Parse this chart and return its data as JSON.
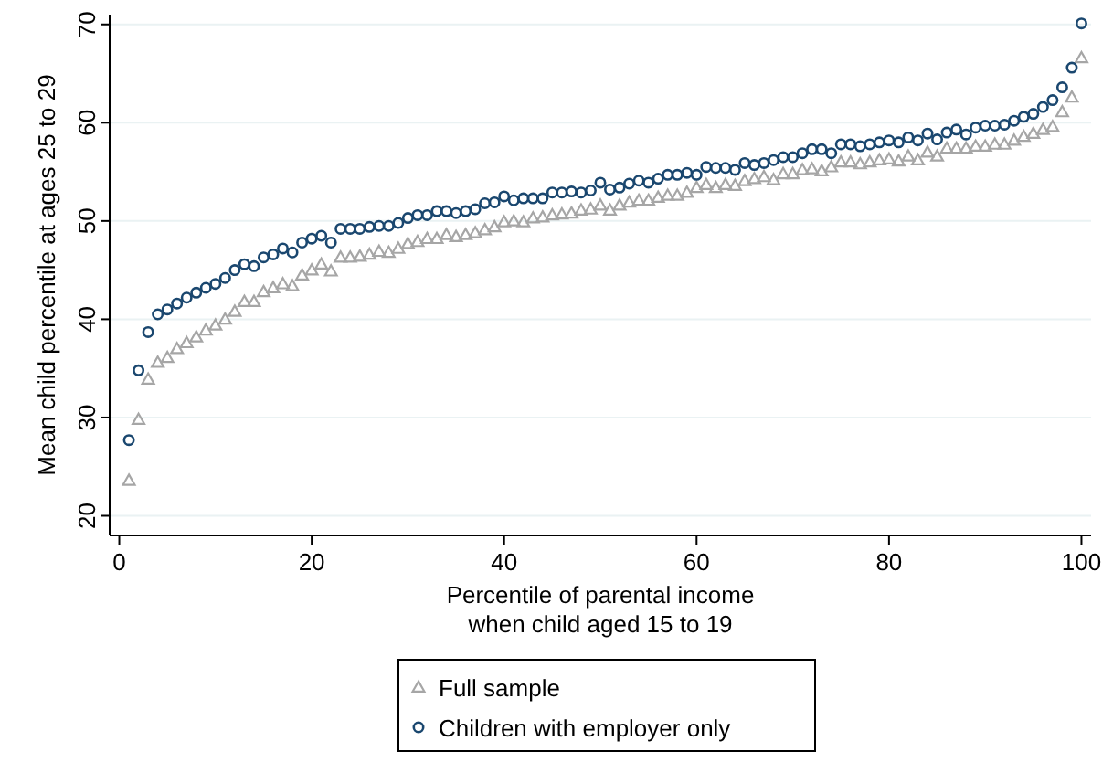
{
  "chart_data": {
    "type": "scatter",
    "xlabel": "Percentile of parental income\nwhen child aged 15 to 19",
    "ylabel": "Mean child percentile at ages 25 to 29",
    "xlim": [
      -1,
      101
    ],
    "ylim": [
      18,
      71
    ],
    "xticks": [
      0,
      20,
      40,
      60,
      80,
      100
    ],
    "yticks": [
      20,
      30,
      40,
      50,
      60,
      70
    ],
    "grid": "y",
    "legend": "bottom",
    "x": [
      1,
      2,
      3,
      4,
      5,
      6,
      7,
      8,
      9,
      10,
      11,
      12,
      13,
      14,
      15,
      16,
      17,
      18,
      19,
      20,
      21,
      22,
      23,
      24,
      25,
      26,
      27,
      28,
      29,
      30,
      31,
      32,
      33,
      34,
      35,
      36,
      37,
      38,
      39,
      40,
      41,
      42,
      43,
      44,
      45,
      46,
      47,
      48,
      49,
      50,
      51,
      52,
      53,
      54,
      55,
      56,
      57,
      58,
      59,
      60,
      61,
      62,
      63,
      64,
      65,
      66,
      67,
      68,
      69,
      70,
      71,
      72,
      73,
      74,
      75,
      76,
      77,
      78,
      79,
      80,
      81,
      82,
      83,
      84,
      85,
      86,
      87,
      88,
      89,
      90,
      91,
      92,
      93,
      94,
      95,
      96,
      97,
      98,
      99,
      100
    ],
    "series": [
      {
        "name": "Full sample",
        "color": "#a6a6a6",
        "marker": "triangle",
        "values": [
          23.6,
          29.8,
          33.9,
          35.6,
          36.1,
          37,
          37.6,
          38.2,
          38.9,
          39.4,
          40,
          40.8,
          41.8,
          41.8,
          42.8,
          43.2,
          43.6,
          43.4,
          44.5,
          45,
          45.6,
          44.9,
          46.3,
          46.3,
          46.4,
          46.6,
          46.9,
          46.8,
          47.2,
          47.7,
          47.9,
          48.2,
          48.2,
          48.6,
          48.4,
          48.6,
          48.8,
          49.1,
          49.4,
          49.9,
          50,
          49.9,
          50.3,
          50.4,
          50.6,
          50.7,
          50.8,
          51.1,
          51.2,
          51.6,
          51.1,
          51.6,
          51.9,
          52.1,
          52.1,
          52.4,
          52.6,
          52.6,
          52.9,
          53.4,
          53.7,
          53.4,
          53.7,
          53.6,
          54.1,
          54.3,
          54.5,
          54.2,
          54.8,
          54.8,
          55.2,
          55.3,
          55.1,
          55.5,
          56,
          56,
          55.8,
          56,
          56.2,
          56.3,
          56.1,
          56.6,
          56.2,
          57,
          56.6,
          57.4,
          57.4,
          57.4,
          57.6,
          57.6,
          57.8,
          57.8,
          58.2,
          58.6,
          58.9,
          59.3,
          59.6,
          61.1,
          62.6,
          66.6
        ]
      },
      {
        "name": "Children with employer only",
        "color": "#1a476f",
        "marker": "circle",
        "values": [
          27.7,
          34.8,
          38.7,
          40.5,
          41,
          41.6,
          42.2,
          42.7,
          43.2,
          43.6,
          44.2,
          45,
          45.6,
          45.4,
          46.3,
          46.6,
          47.2,
          46.8,
          47.8,
          48.2,
          48.5,
          47.8,
          49.2,
          49.2,
          49.2,
          49.4,
          49.5,
          49.5,
          49.8,
          50.3,
          50.6,
          50.6,
          51,
          51,
          50.8,
          51,
          51.2,
          51.8,
          51.9,
          52.5,
          52.1,
          52.3,
          52.3,
          52.3,
          52.9,
          52.9,
          53,
          52.9,
          53.1,
          53.9,
          53.2,
          53.4,
          53.8,
          54.1,
          53.9,
          54.3,
          54.7,
          54.7,
          54.9,
          54.7,
          55.5,
          55.4,
          55.4,
          55.2,
          55.9,
          55.7,
          55.9,
          56.2,
          56.5,
          56.5,
          56.9,
          57.3,
          57.3,
          56.9,
          57.8,
          57.8,
          57.6,
          57.8,
          58,
          58.2,
          58,
          58.5,
          58.2,
          58.9,
          58.3,
          59,
          59.3,
          58.8,
          59.5,
          59.7,
          59.7,
          59.8,
          60.2,
          60.6,
          60.9,
          61.6,
          62.3,
          63.6,
          65.6,
          70.1
        ]
      }
    ]
  }
}
